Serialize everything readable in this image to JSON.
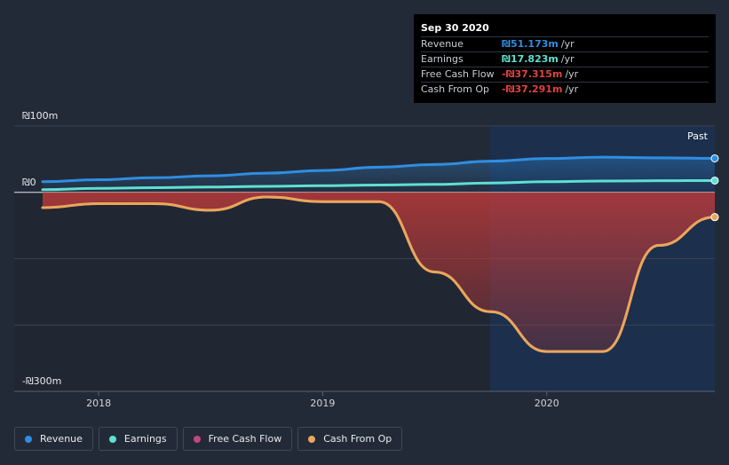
{
  "chart_data": {
    "type": "line",
    "title": "",
    "y_unit": "₪",
    "ylim": [
      -300,
      100
    ],
    "y_tick_labels": [
      "₪100m",
      "₪0",
      "-₪300m"
    ],
    "x_tick_labels": [
      "2018",
      "2019",
      "2020"
    ],
    "past_label": "Past",
    "x": [
      2017.75,
      2018.0,
      2018.25,
      2018.5,
      2018.75,
      2019.0,
      2019.25,
      2019.5,
      2019.75,
      2020.0,
      2020.25,
      2020.5,
      2020.75
    ],
    "series": [
      {
        "name": "Revenue",
        "color": "#2f8ee1",
        "values": [
          16,
          19,
          22,
          25,
          29,
          33,
          38,
          42,
          47,
          51,
          53,
          52,
          51.2
        ]
      },
      {
        "name": "Earnings",
        "color": "#5fe0d2",
        "values": [
          4,
          6,
          7,
          8,
          9,
          10,
          11,
          12,
          14,
          16,
          17,
          17.5,
          17.8
        ]
      },
      {
        "name": "Free Cash Flow",
        "color": "#c3477a",
        "values": [
          -23,
          -17,
          -17,
          -27,
          -7,
          -14,
          -14,
          -120,
          -180,
          -240,
          -240,
          -80,
          -37.3
        ]
      },
      {
        "name": "Cash From Op",
        "color": "#e8a85a",
        "values": [
          -23,
          -17,
          -17,
          -27,
          -7,
          -14,
          -14,
          -120,
          -180,
          -240,
          -240,
          -80,
          -37.3
        ]
      }
    ]
  },
  "tooltip": {
    "date": "Sep 30 2020",
    "rows": [
      {
        "name": "Revenue",
        "value": "₪51.173m",
        "unit": "/yr",
        "color": "#2f8ee1"
      },
      {
        "name": "Earnings",
        "value": "₪17.823m",
        "unit": "/yr",
        "color": "#5fe0d2"
      },
      {
        "name": "Free Cash Flow",
        "value": "-₪37.315m",
        "unit": "/yr",
        "color": "#e0433f"
      },
      {
        "name": "Cash From Op",
        "value": "-₪37.291m",
        "unit": "/yr",
        "color": "#e0433f"
      }
    ]
  },
  "legend": [
    {
      "label": "Revenue",
      "color": "#2f8ee1"
    },
    {
      "label": "Earnings",
      "color": "#5fe0d2"
    },
    {
      "label": "Free Cash Flow",
      "color": "#c3477a"
    },
    {
      "label": "Cash From Op",
      "color": "#e8a85a"
    }
  ]
}
